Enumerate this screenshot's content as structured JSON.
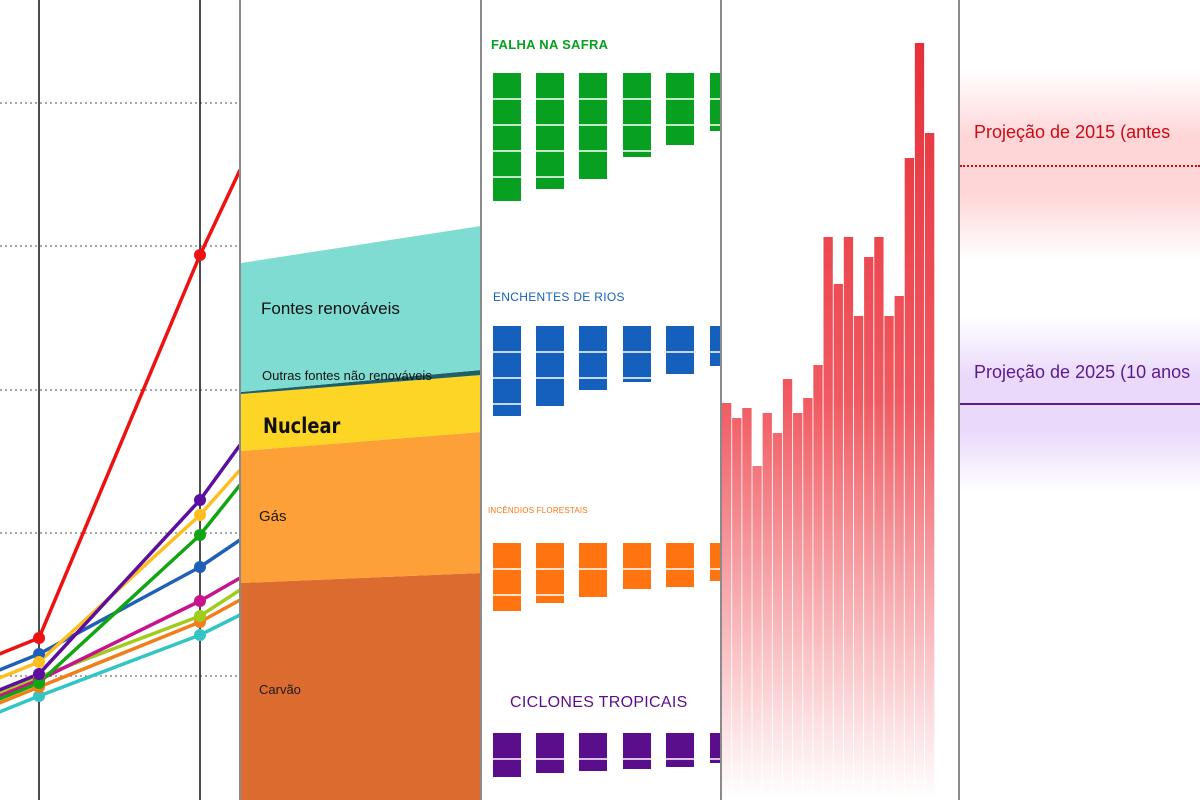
{
  "chart_data": [
    {
      "type": "line",
      "panel": "line-panel",
      "x": [
        0,
        1,
        2
      ],
      "ylim": [
        0,
        800
      ],
      "grid": "dotted horizontal",
      "series": [
        {
          "color": "#ee1111",
          "values": [
            638,
            255,
            170
          ]
        },
        {
          "color": "#5b0ea0",
          "values": [
            674,
            500,
            445
          ]
        },
        {
          "color": "#ffbe1e",
          "values": [
            662,
            515,
            470
          ]
        },
        {
          "color": "#12a512",
          "values": [
            683,
            535,
            485
          ]
        },
        {
          "color": "#1f5fb5",
          "values": [
            654,
            567,
            540
          ]
        },
        {
          "color": "#c8148c",
          "values": [
            680,
            601,
            578
          ]
        },
        {
          "color": "#a0cc1c",
          "values": [
            677,
            616,
            590
          ]
        },
        {
          "color": "#f07f1a",
          "values": [
            687,
            622,
            600
          ]
        },
        {
          "color": "#33c4c4",
          "values": [
            696,
            635,
            615
          ]
        }
      ]
    },
    {
      "type": "area",
      "panel": "area-panel",
      "x": [
        0,
        1
      ],
      "ylim": [
        0,
        800
      ],
      "layers": [
        {
          "label": "Carvão",
          "color": "#dc6b2f",
          "bottom": [
            800,
            800
          ],
          "top": [
            583,
            573
          ]
        },
        {
          "label": "Gás",
          "color": "#fda038",
          "bottom": [
            583,
            573
          ],
          "top": [
            451,
            432
          ]
        },
        {
          "label": "Nuclear",
          "color": "#fdd524",
          "bottom": [
            451,
            432
          ],
          "top": [
            394,
            375
          ]
        },
        {
          "label": "Outras fontes não renováveis",
          "color": "#1f5f66",
          "bottom": [
            394,
            375
          ],
          "top": [
            392,
            370
          ]
        },
        {
          "label": "Fontes renováveis",
          "color": "#7fdcd2",
          "bottom": [
            392,
            370
          ],
          "top": [
            263,
            226
          ]
        }
      ]
    },
    {
      "type": "bar",
      "panel": "impact-panel",
      "groups": [
        {
          "label": "FALHA NA SAFRA",
          "color": "#08a020",
          "values": [
            128,
            116,
            106,
            84,
            72,
            58
          ]
        },
        {
          "label": "ENCHENTES DE RIOS",
          "color": "#1560bd",
          "values": [
            90,
            80,
            64,
            56,
            48,
            40
          ]
        },
        {
          "label": "INCÊNDIOS FLORESTAIS",
          "color": "#ff7410",
          "values": [
            68,
            60,
            54,
            46,
            44,
            38
          ]
        },
        {
          "label": "CICLONES TROPICAIS",
          "color": "#5b0e8c",
          "values": [
            44,
            40,
            38,
            36,
            34,
            30
          ]
        }
      ]
    },
    {
      "type": "bar",
      "panel": "temperature-panel",
      "color": "#e52b34",
      "ylim": [
        0,
        800
      ],
      "values": [
        403,
        418,
        408,
        466,
        413,
        433,
        379,
        413,
        398,
        365,
        237,
        284,
        237,
        316,
        257,
        237,
        316,
        296,
        158,
        43,
        133
      ]
    },
    {
      "type": "annotation",
      "panel": "projection-panel",
      "items": [
        {
          "label": "Projeção de 2015 (antes",
          "color": "#cc0b14",
          "band_color": "#ffd6d8"
        },
        {
          "label": "Projeção de 2025 (10 anos",
          "color": "#5a1a8c",
          "band_color": "#ead9fb"
        }
      ]
    }
  ]
}
